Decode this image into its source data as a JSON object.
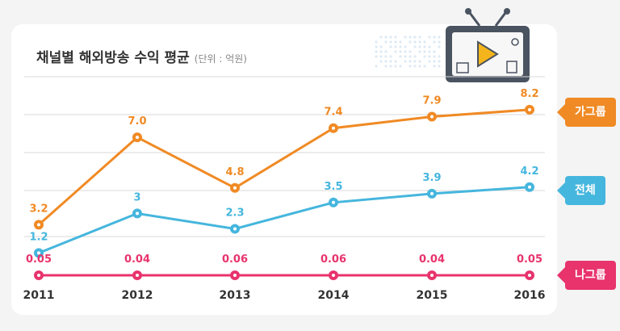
{
  "title": "채널별 해외방송 수익 평균",
  "unit": "(단위 : 억원)",
  "colors": {
    "group_a": "#F08A24",
    "total": "#45B6DD",
    "group_b": "#E8336D",
    "grid": "#D9D9D9",
    "card_bg": "#FFFFFF",
    "page_bg": "#F4F4F4",
    "tv": "#4A5360"
  },
  "chart_data": {
    "type": "line",
    "categories": [
      "2011",
      "2012",
      "2013",
      "2014",
      "2015",
      "2016"
    ],
    "series": [
      {
        "name": "가그룹",
        "color": "#F08A24",
        "values": [
          3.2,
          7.0,
          4.8,
          7.4,
          7.9,
          8.2
        ],
        "labels": [
          "3.2",
          "7.0",
          "4.8",
          "7.4",
          "7.9",
          "8.2"
        ]
      },
      {
        "name": "전체",
        "color": "#45B6DD",
        "values": [
          1.2,
          3,
          2.3,
          3.5,
          3.9,
          4.2
        ],
        "labels": [
          "1.2",
          "3",
          "2.3",
          "3.5",
          "3.9",
          "4.2"
        ]
      },
      {
        "name": "나그룹",
        "color": "#E8336D",
        "values": [
          0.05,
          0.04,
          0.06,
          0.06,
          0.04,
          0.05
        ],
        "labels": [
          "0.05",
          "0.04",
          "0.06",
          "0.06",
          "0.04",
          "0.05"
        ]
      }
    ],
    "grid": true,
    "legend": "right"
  }
}
